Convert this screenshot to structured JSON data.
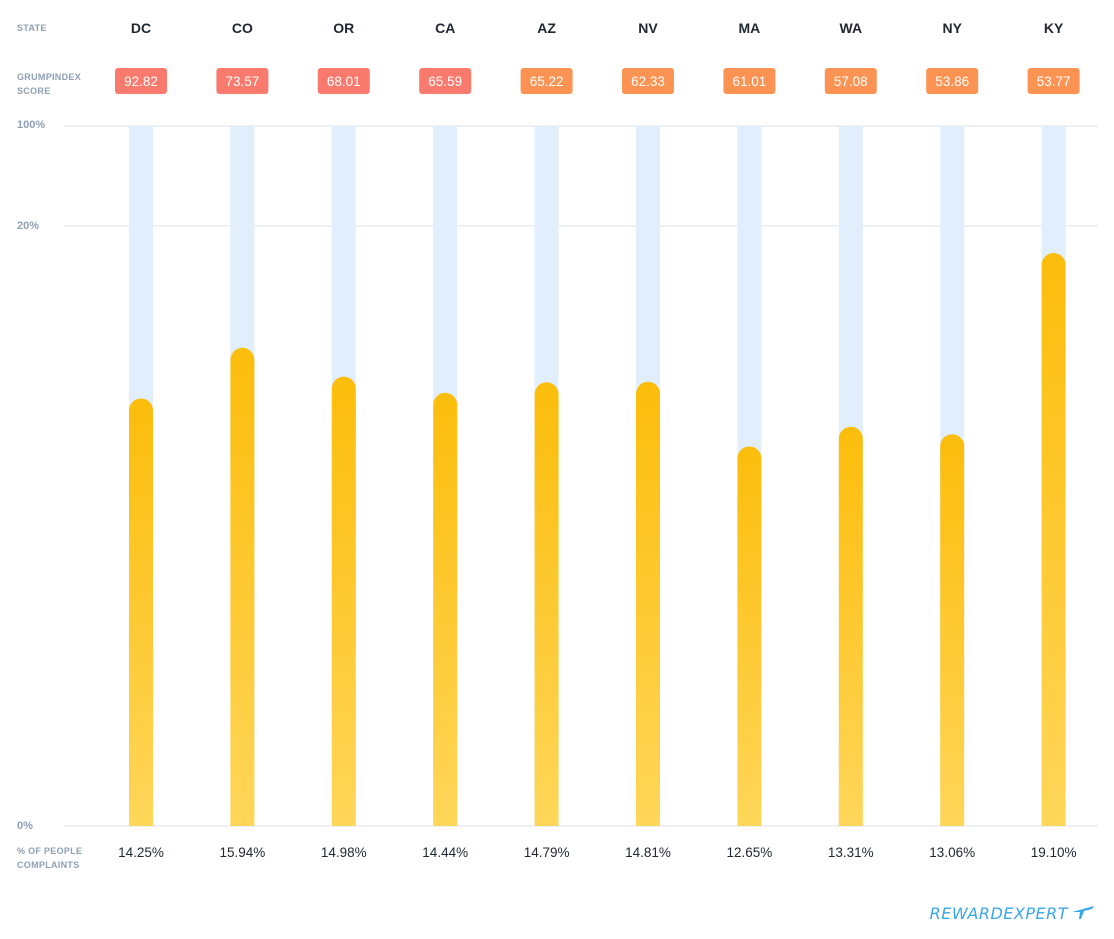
{
  "labels": {
    "state_header": "STATE",
    "grump_header_line1": "GRUMPINDEX",
    "grump_header_line2": "SCORE",
    "complaints_header_line1": "% OF PEOPLE",
    "complaints_header_line2": "COMPLAINTS",
    "y_top": "100%",
    "y_mid": "20%",
    "y_bottom": "0%"
  },
  "brand": {
    "text": "REWARDEXPERT",
    "icon": "plane-icon",
    "color": "#3aa8e6"
  },
  "colors": {
    "bar_top": "#fcbd0b",
    "bar_bottom": "#ffd659",
    "track": "#e1eefb",
    "grid": "#dde3ea",
    "score_high": "#fb7a6e",
    "score_low": "#fd9352"
  },
  "chart_data": {
    "type": "bar",
    "y_axis_ticks": [
      "0%",
      "20%",
      "100%"
    ],
    "categories": [
      "DC",
      "CO",
      "OR",
      "CA",
      "AZ",
      "NV",
      "MA",
      "WA",
      "NY",
      "KY"
    ],
    "grumpindex_scores": [
      "92.82",
      "73.57",
      "68.01",
      "65.59",
      "65.22",
      "62.33",
      "61.01",
      "57.08",
      "53.86",
      "53.77"
    ],
    "value_labels": [
      "14.25%",
      "15.94%",
      "14.98%",
      "14.44%",
      "14.79%",
      "14.81%",
      "12.65%",
      "13.31%",
      "13.06%",
      "19.10%"
    ],
    "values": [
      14.25,
      15.94,
      14.98,
      14.44,
      14.79,
      14.81,
      12.65,
      13.31,
      13.06,
      19.1
    ],
    "ylim": [
      0,
      100
    ],
    "grid": true
  }
}
